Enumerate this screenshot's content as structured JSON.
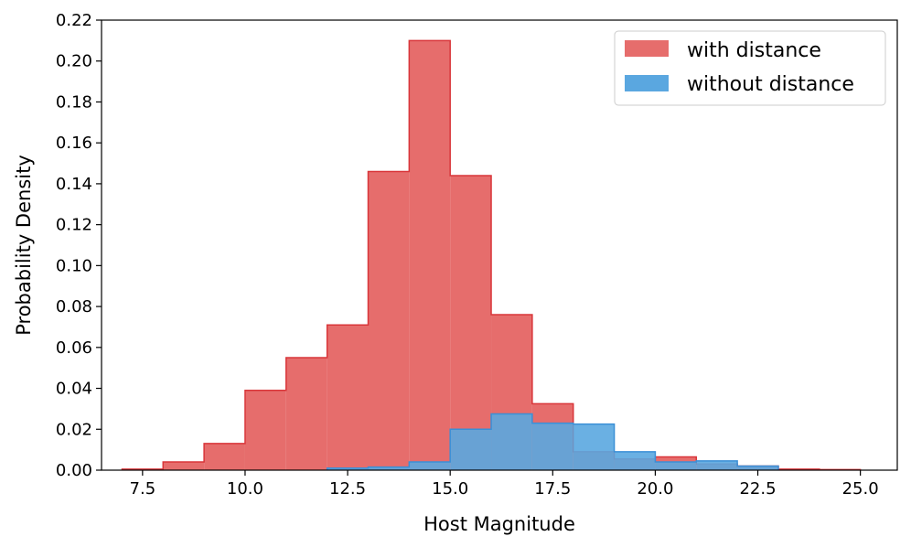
{
  "chart_data": {
    "type": "histogram",
    "xlabel": "Host Magnitude",
    "ylabel": "Probability Density",
    "xlim": [
      6.5,
      25.9
    ],
    "ylim": [
      0.0,
      0.22
    ],
    "xticks": [
      7.5,
      10.0,
      12.5,
      15.0,
      17.5,
      20.0,
      22.5,
      25.0
    ],
    "xtick_labels": [
      "7.5",
      "10.0",
      "12.5",
      "15.0",
      "17.5",
      "20.0",
      "22.5",
      "25.0"
    ],
    "yticks": [
      0.0,
      0.02,
      0.04,
      0.06,
      0.08,
      0.1,
      0.12,
      0.14,
      0.16,
      0.18,
      0.2,
      0.22
    ],
    "ytick_labels": [
      "0.00",
      "0.02",
      "0.04",
      "0.06",
      "0.08",
      "0.10",
      "0.12",
      "0.14",
      "0.16",
      "0.18",
      "0.20",
      "0.22"
    ],
    "grid": false,
    "legend_position": "top-right",
    "series": [
      {
        "name": "with distance",
        "fill": "#e35d5c",
        "stroke": "#d9363a",
        "bins": [
          [
            7,
            8,
            0.0005
          ],
          [
            8,
            9,
            0.004
          ],
          [
            9,
            10,
            0.013
          ],
          [
            10,
            11,
            0.039
          ],
          [
            11,
            12,
            0.055
          ],
          [
            12,
            13,
            0.071
          ],
          [
            13,
            14,
            0.146
          ],
          [
            14,
            15,
            0.21
          ],
          [
            15,
            16,
            0.144
          ],
          [
            16,
            17,
            0.076
          ],
          [
            17,
            18,
            0.0325
          ],
          [
            18,
            19,
            0.009
          ],
          [
            19,
            20,
            0.0055
          ],
          [
            20,
            21,
            0.0065
          ],
          [
            21,
            22,
            0.003
          ],
          [
            22,
            23,
            0.002
          ],
          [
            23,
            24,
            0.0005
          ],
          [
            24,
            25,
            0.0003
          ]
        ]
      },
      {
        "name": "without distance",
        "fill": "#5aa7e0",
        "stroke": "#3b8fd6",
        "bins": [
          [
            12,
            13,
            0.001
          ],
          [
            13,
            14,
            0.0015
          ],
          [
            14,
            15,
            0.004
          ],
          [
            15,
            16,
            0.02
          ],
          [
            16,
            17,
            0.0275
          ],
          [
            17,
            18,
            0.023
          ],
          [
            18,
            19,
            0.0225
          ],
          [
            19,
            20,
            0.009
          ],
          [
            20,
            21,
            0.004
          ],
          [
            21,
            22,
            0.0045
          ],
          [
            22,
            23,
            0.002
          ]
        ]
      }
    ]
  }
}
